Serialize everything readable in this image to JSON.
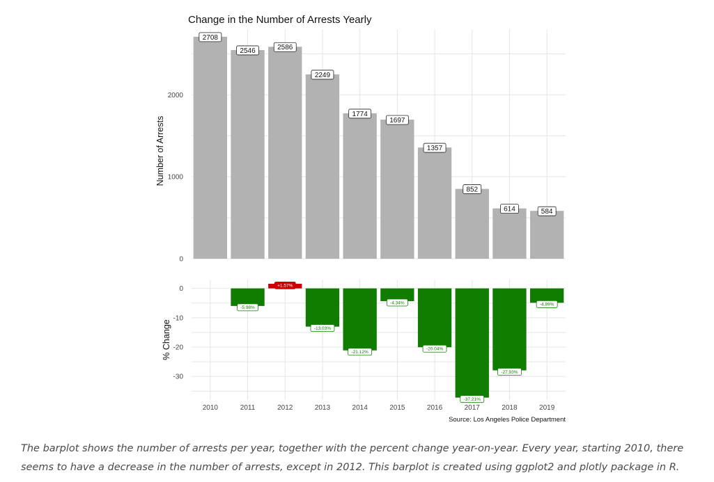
{
  "chart_data": [
    {
      "type": "bar",
      "title": "Change in the Number of Arrests Yearly",
      "ylabel": "Number of Arrests",
      "categories": [
        "2010",
        "2011",
        "2012",
        "2013",
        "2014",
        "2015",
        "2016",
        "2017",
        "2018",
        "2019"
      ],
      "values": [
        2708,
        2546,
        2586,
        2249,
        1774,
        1697,
        1357,
        852,
        614,
        584
      ],
      "labels": [
        "2708",
        "2546",
        "2586",
        "2249",
        "1774",
        "1697",
        "1357",
        "852",
        "614",
        "584"
      ],
      "yticks": [
        0,
        1000,
        2000
      ],
      "ytick_labels": [
        "0",
        "1000",
        "2000"
      ],
      "ylim": [
        0,
        2800
      ],
      "bar_color": "#b2b2b2",
      "grid": true
    },
    {
      "type": "bar",
      "ylabel": "% Change",
      "categories": [
        "2010",
        "2011",
        "2012",
        "2013",
        "2014",
        "2015",
        "2016",
        "2017",
        "2018",
        "2019"
      ],
      "values": [
        null,
        -5.98,
        1.57,
        -13.03,
        -21.12,
        -4.34,
        -20.04,
        -37.21,
        -27.93,
        -4.89
      ],
      "labels": [
        "",
        "-5.98%",
        "+1.57%",
        "-13.03%",
        "-21.12%",
        "-4.34%",
        "-20.04%",
        "-37.21%",
        "-27.93%",
        "-4.89%"
      ],
      "yticks": [
        0,
        -10,
        -20,
        -30
      ],
      "ytick_labels": [
        "0",
        "-10",
        "-20",
        "-30"
      ],
      "ylim": [
        -38,
        3
      ],
      "positive_color": "#cc0000",
      "negative_color": "#117d00",
      "grid": true,
      "source": "Source: Los Angeles Police Department"
    }
  ],
  "caption": "The barplot shows the number of arrests per year, together with the percent change year-on-year. Every year, starting 2010, there seems to have a decrease in the number of arrests, except in 2012. This barplot is created using ggplot2 and plotly package in R."
}
